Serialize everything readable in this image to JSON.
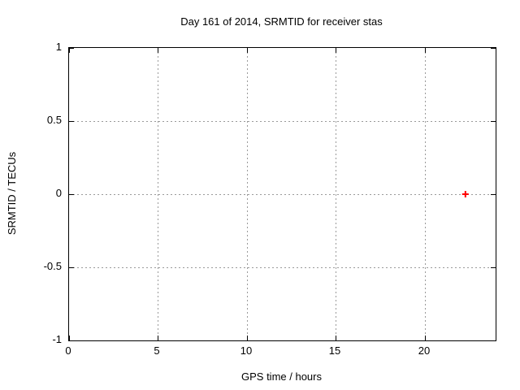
{
  "chart_data": {
    "type": "scatter",
    "title": "Day 161 of 2014, SRMTID for receiver stas",
    "xlabel": "GPS time / hours",
    "ylabel": "SRMTID / TECUs",
    "xlim": [
      0,
      24
    ],
    "ylim": [
      -1,
      1
    ],
    "xticks": [
      0,
      5,
      10,
      15,
      20
    ],
    "yticks": [
      -1,
      -0.5,
      0,
      0.5,
      1
    ],
    "grid": true,
    "grid_style": "dotted",
    "legend": "none",
    "series": [
      {
        "name": "SRMTID",
        "marker": "plus",
        "color": "#ff0000",
        "points": [
          {
            "x": 22.3,
            "y": 0.0
          }
        ]
      }
    ],
    "colors": {
      "background": "#ffffff",
      "border": "#000000",
      "grid": "#9a9a9a",
      "text": "#000000"
    }
  }
}
